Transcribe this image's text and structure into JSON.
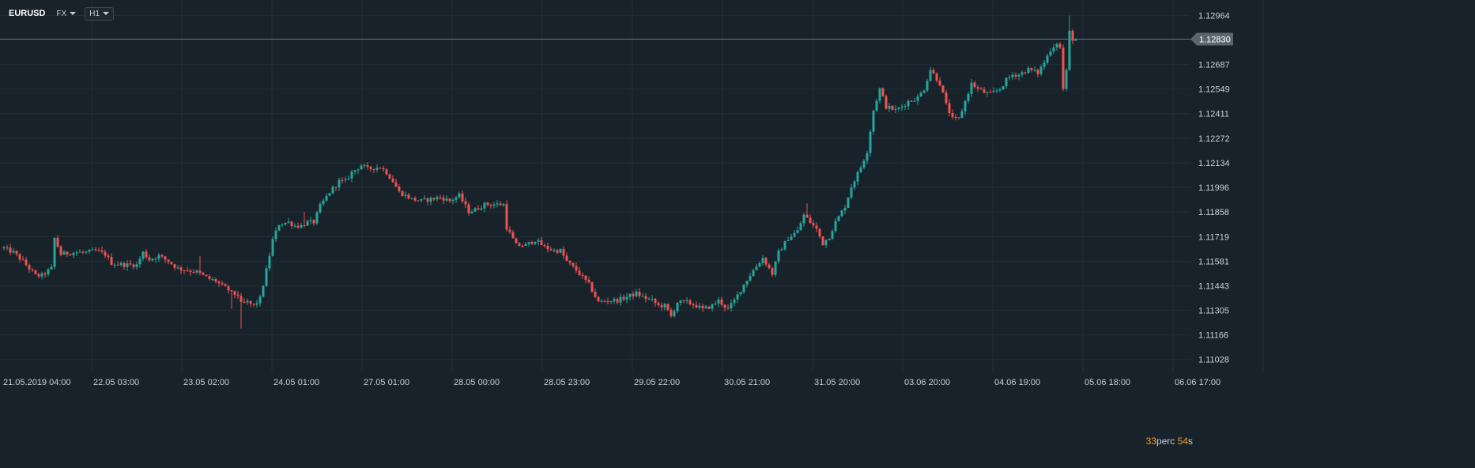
{
  "toolbar": {
    "symbol": "EURUSD",
    "market": "FX",
    "timeframe": "H1"
  },
  "countdown": {
    "minutes": "33",
    "minutes_label": "perc",
    "seconds": "54",
    "seconds_label": "s"
  },
  "colors": {
    "background": "#18222a",
    "grid": "#232e36",
    "up": "#26a69a",
    "down": "#ef5350",
    "price_line": "#6b7780",
    "price_badge": "#5a6670",
    "countdown_accent": "#f0a030"
  },
  "chart_data": {
    "type": "candlestick",
    "symbol": "EURUSD",
    "timeframe": "H1",
    "ylim": [
      1.1096,
      1.1305
    ],
    "y_ticks": [
      "1.12964",
      "1.12687",
      "1.12549",
      "1.12411",
      "1.12272",
      "1.12134",
      "1.11996",
      "1.11858",
      "1.11719",
      "1.11581",
      "1.11443",
      "1.11305",
      "1.11166",
      "1.11028"
    ],
    "x_ticks": [
      "21.05.2019  04:00",
      "22.05  03:00",
      "23.05  02:00",
      "24.05  01:00",
      "27.05  01:00",
      "28.05  00:00",
      "28.05  23:00",
      "29.05  22:00",
      "30.05  21:00",
      "31.05  20:00",
      "03.06  20:00",
      "04.06  19:00",
      "05.06  18:00",
      "06.06  17:00"
    ],
    "current_price": "1.12830",
    "path": [
      [
        0,
        1.1166
      ],
      [
        4,
        1.1163
      ],
      [
        7,
        1.1158
      ],
      [
        11,
        1.115
      ],
      [
        13,
        1.115
      ],
      [
        16,
        1.1154
      ],
      [
        17,
        1.1171
      ],
      [
        19,
        1.1162
      ],
      [
        23,
        1.1163
      ],
      [
        27,
        1.1163
      ],
      [
        30,
        1.1164
      ],
      [
        33,
        1.1162
      ],
      [
        35,
        1.1157
      ],
      [
        39,
        1.1156
      ],
      [
        43,
        1.1156
      ],
      [
        45,
        1.1163
      ],
      [
        47,
        1.1159
      ],
      [
        50,
        1.1161
      ],
      [
        53,
        1.1158
      ],
      [
        56,
        1.1154
      ],
      [
        59,
        1.1153
      ],
      [
        62,
        1.1152
      ],
      [
        64,
        1.115
      ],
      [
        66,
        1.1148
      ],
      [
        68,
        1.1147
      ],
      [
        70,
        1.1144
      ],
      [
        72,
        1.1142
      ],
      [
        73,
        1.114
      ],
      [
        75,
        1.1139
      ],
      [
        76,
        1.1134
      ],
      [
        78,
        1.1135
      ],
      [
        80,
        1.1133
      ],
      [
        82,
        1.1137
      ],
      [
        84,
        1.1153
      ],
      [
        86,
        1.117
      ],
      [
        88,
        1.1179
      ],
      [
        91,
        1.118
      ],
      [
        93,
        1.1178
      ],
      [
        95,
        1.1178
      ],
      [
        97,
        1.118
      ],
      [
        99,
        1.118
      ],
      [
        101,
        1.1189
      ],
      [
        104,
        1.1197
      ],
      [
        107,
        1.1203
      ],
      [
        109,
        1.1203
      ],
      [
        111,
        1.1208
      ],
      [
        114,
        1.1212
      ],
      [
        116,
        1.121
      ],
      [
        120,
        1.1211
      ],
      [
        122,
        1.1208
      ],
      [
        124,
        1.1203
      ],
      [
        126,
        1.1197
      ],
      [
        128,
        1.1195
      ],
      [
        130,
        1.1193
      ],
      [
        133,
        1.1192
      ],
      [
        136,
        1.1193
      ],
      [
        139,
        1.1194
      ],
      [
        142,
        1.1192
      ],
      [
        145,
        1.1195
      ],
      [
        148,
        1.1186
      ],
      [
        150,
        1.1187
      ],
      [
        153,
        1.119
      ],
      [
        156,
        1.119
      ],
      [
        159,
        1.119
      ],
      [
        160,
        1.1177
      ],
      [
        163,
        1.1167
      ],
      [
        166,
        1.1167
      ],
      [
        169,
        1.117
      ],
      [
        172,
        1.1166
      ],
      [
        175,
        1.1164
      ],
      [
        177,
        1.1164
      ],
      [
        179,
        1.1158
      ],
      [
        182,
        1.1153
      ],
      [
        184,
        1.1149
      ],
      [
        186,
        1.1145
      ],
      [
        189,
        1.1135
      ],
      [
        192,
        1.1136
      ],
      [
        195,
        1.1136
      ],
      [
        198,
        1.1138
      ],
      [
        201,
        1.114
      ],
      [
        203,
        1.1138
      ],
      [
        206,
        1.1136
      ],
      [
        208,
        1.1133
      ],
      [
        210,
        1.1133
      ],
      [
        212,
        1.1127
      ],
      [
        214,
        1.1135
      ],
      [
        217,
        1.1135
      ],
      [
        220,
        1.1133
      ],
      [
        222,
        1.1131
      ],
      [
        225,
        1.1133
      ],
      [
        227,
        1.1136
      ],
      [
        230,
        1.1131
      ],
      [
        232,
        1.1136
      ],
      [
        235,
        1.1145
      ],
      [
        238,
        1.1153
      ],
      [
        241,
        1.116
      ],
      [
        244,
        1.1151
      ],
      [
        246,
        1.1163
      ],
      [
        249,
        1.1171
      ],
      [
        252,
        1.1175
      ],
      [
        254,
        1.1184
      ],
      [
        256,
        1.118
      ],
      [
        258,
        1.1176
      ],
      [
        260,
        1.1168
      ],
      [
        262,
        1.1172
      ],
      [
        264,
        1.118
      ],
      [
        267,
        1.1189
      ],
      [
        269,
        1.12
      ],
      [
        272,
        1.1211
      ],
      [
        274,
        1.122
      ],
      [
        276,
        1.1243
      ],
      [
        278,
        1.1255
      ],
      [
        280,
        1.1245
      ],
      [
        283,
        1.1243
      ],
      [
        285,
        1.1245
      ],
      [
        287,
        1.1248
      ],
      [
        290,
        1.125
      ],
      [
        292,
        1.1255
      ],
      [
        294,
        1.1266
      ],
      [
        297,
        1.1258
      ],
      [
        299,
        1.1246
      ],
      [
        301,
        1.1238
      ],
      [
        303,
        1.1238
      ],
      [
        305,
        1.1248
      ],
      [
        307,
        1.1258
      ],
      [
        309,
        1.1255
      ],
      [
        311,
        1.1253
      ],
      [
        313,
        1.1252
      ],
      [
        316,
        1.1255
      ],
      [
        318,
        1.126
      ],
      [
        320,
        1.1263
      ],
      [
        322,
        1.1263
      ],
      [
        325,
        1.1266
      ],
      [
        328,
        1.1264
      ],
      [
        330,
        1.127
      ],
      [
        332,
        1.1277
      ],
      [
        334,
        1.1281
      ],
      [
        335,
        1.1278
      ],
      [
        336,
        1.1255
      ],
      [
        337,
        1.1265
      ],
      [
        338,
        1.1287
      ],
      [
        339,
        1.1283
      ]
    ]
  }
}
